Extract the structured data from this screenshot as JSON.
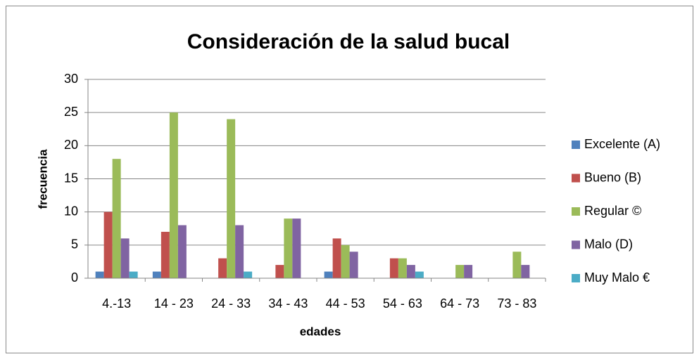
{
  "chart_data": {
    "type": "bar",
    "title": "Consideración de la salud bucal",
    "x_label": "edades",
    "y_label": "frecuencia",
    "categories": [
      "4.-13",
      "14 - 23",
      "24 - 33",
      "34 - 43",
      "44 - 53",
      "54 - 63",
      "64 - 73",
      "73 - 83"
    ],
    "series": [
      {
        "name": "Excelente (A)",
        "color": "#4f81bd",
        "values": [
          1,
          1,
          0,
          0,
          1,
          0,
          0,
          0
        ]
      },
      {
        "name": "Bueno (B)",
        "color": "#c0504d",
        "values": [
          10,
          7,
          3,
          2,
          6,
          3,
          0,
          0
        ]
      },
      {
        "name": "Regular ©",
        "color": "#9bbb59",
        "values": [
          18,
          25,
          24,
          9,
          5,
          3,
          2,
          4
        ]
      },
      {
        "name": "Malo (D)",
        "color": "#8064a2",
        "values": [
          6,
          8,
          8,
          9,
          4,
          2,
          2,
          2
        ]
      },
      {
        "name": "Muy Malo €",
        "color": "#4bacc6",
        "values": [
          1,
          0,
          1,
          0,
          0,
          1,
          0,
          0
        ]
      }
    ],
    "ylim": [
      0,
      30
    ],
    "yticks": [
      0,
      5,
      10,
      15,
      20,
      25,
      30
    ],
    "grid": true,
    "legend": "right"
  }
}
